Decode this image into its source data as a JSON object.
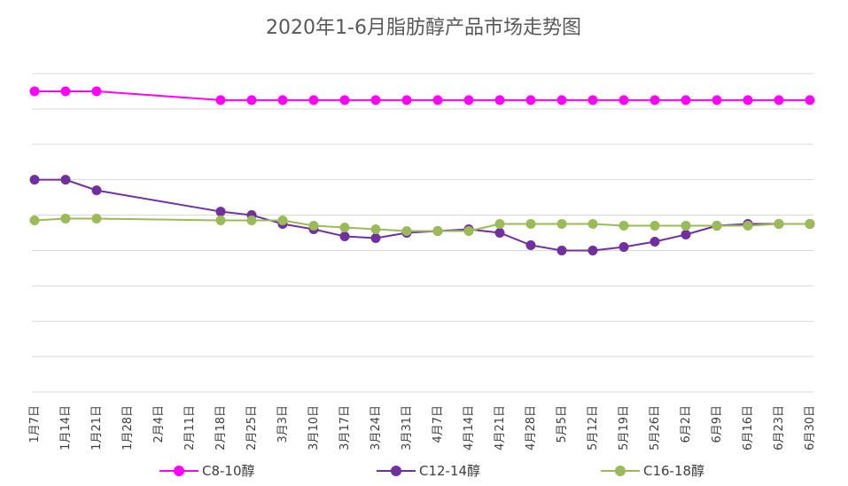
{
  "chart_data": {
    "type": "line",
    "title": "2020年1-6月脂肪醇产品市场走势图",
    "xlabel": "",
    "ylabel": "",
    "ylim": [
      0,
      9
    ],
    "grid": true,
    "legend": "bottom",
    "categories": [
      "1月7日",
      "1月14日",
      "1月21日",
      "1月28日",
      "2月4日",
      "2月11日",
      "2月18日",
      "2月25日",
      "3月3日",
      "3月10日",
      "3月17日",
      "3月24日",
      "3月31日",
      "4月7日",
      "4月14日",
      "4月21日",
      "4月28日",
      "5月5日",
      "5月12日",
      "5月19日",
      "5月26日",
      "6月2日",
      "6月9日",
      "6月16日",
      "6月23日",
      "6月30日"
    ],
    "series": [
      {
        "name": "C8-10醇",
        "color": "#FF00FF",
        "values": [
          8.5,
          8.5,
          8.5,
          null,
          null,
          null,
          8.25,
          8.25,
          8.25,
          8.25,
          8.25,
          8.25,
          8.25,
          8.25,
          8.25,
          8.25,
          8.25,
          8.25,
          8.25,
          8.25,
          8.25,
          8.25,
          8.25,
          8.25,
          8.25,
          8.25
        ]
      },
      {
        "name": "C12-14醇",
        "color": "#7030A0",
        "values": [
          6.0,
          6.0,
          5.7,
          null,
          null,
          null,
          5.1,
          5.0,
          4.75,
          4.6,
          4.4,
          4.35,
          4.5,
          4.55,
          4.6,
          4.5,
          4.15,
          4.0,
          4.0,
          4.1,
          4.25,
          4.45,
          4.7,
          4.75,
          4.75,
          4.75
        ]
      },
      {
        "name": "C16-18醇",
        "color": "#9BBB59",
        "values": [
          4.85,
          4.9,
          4.9,
          null,
          null,
          null,
          4.85,
          4.85,
          4.85,
          4.7,
          4.65,
          4.6,
          4.55,
          4.55,
          4.55,
          4.75,
          4.75,
          4.75,
          4.75,
          4.7,
          4.7,
          4.7,
          4.7,
          4.7,
          4.75,
          4.75
        ]
      }
    ]
  }
}
